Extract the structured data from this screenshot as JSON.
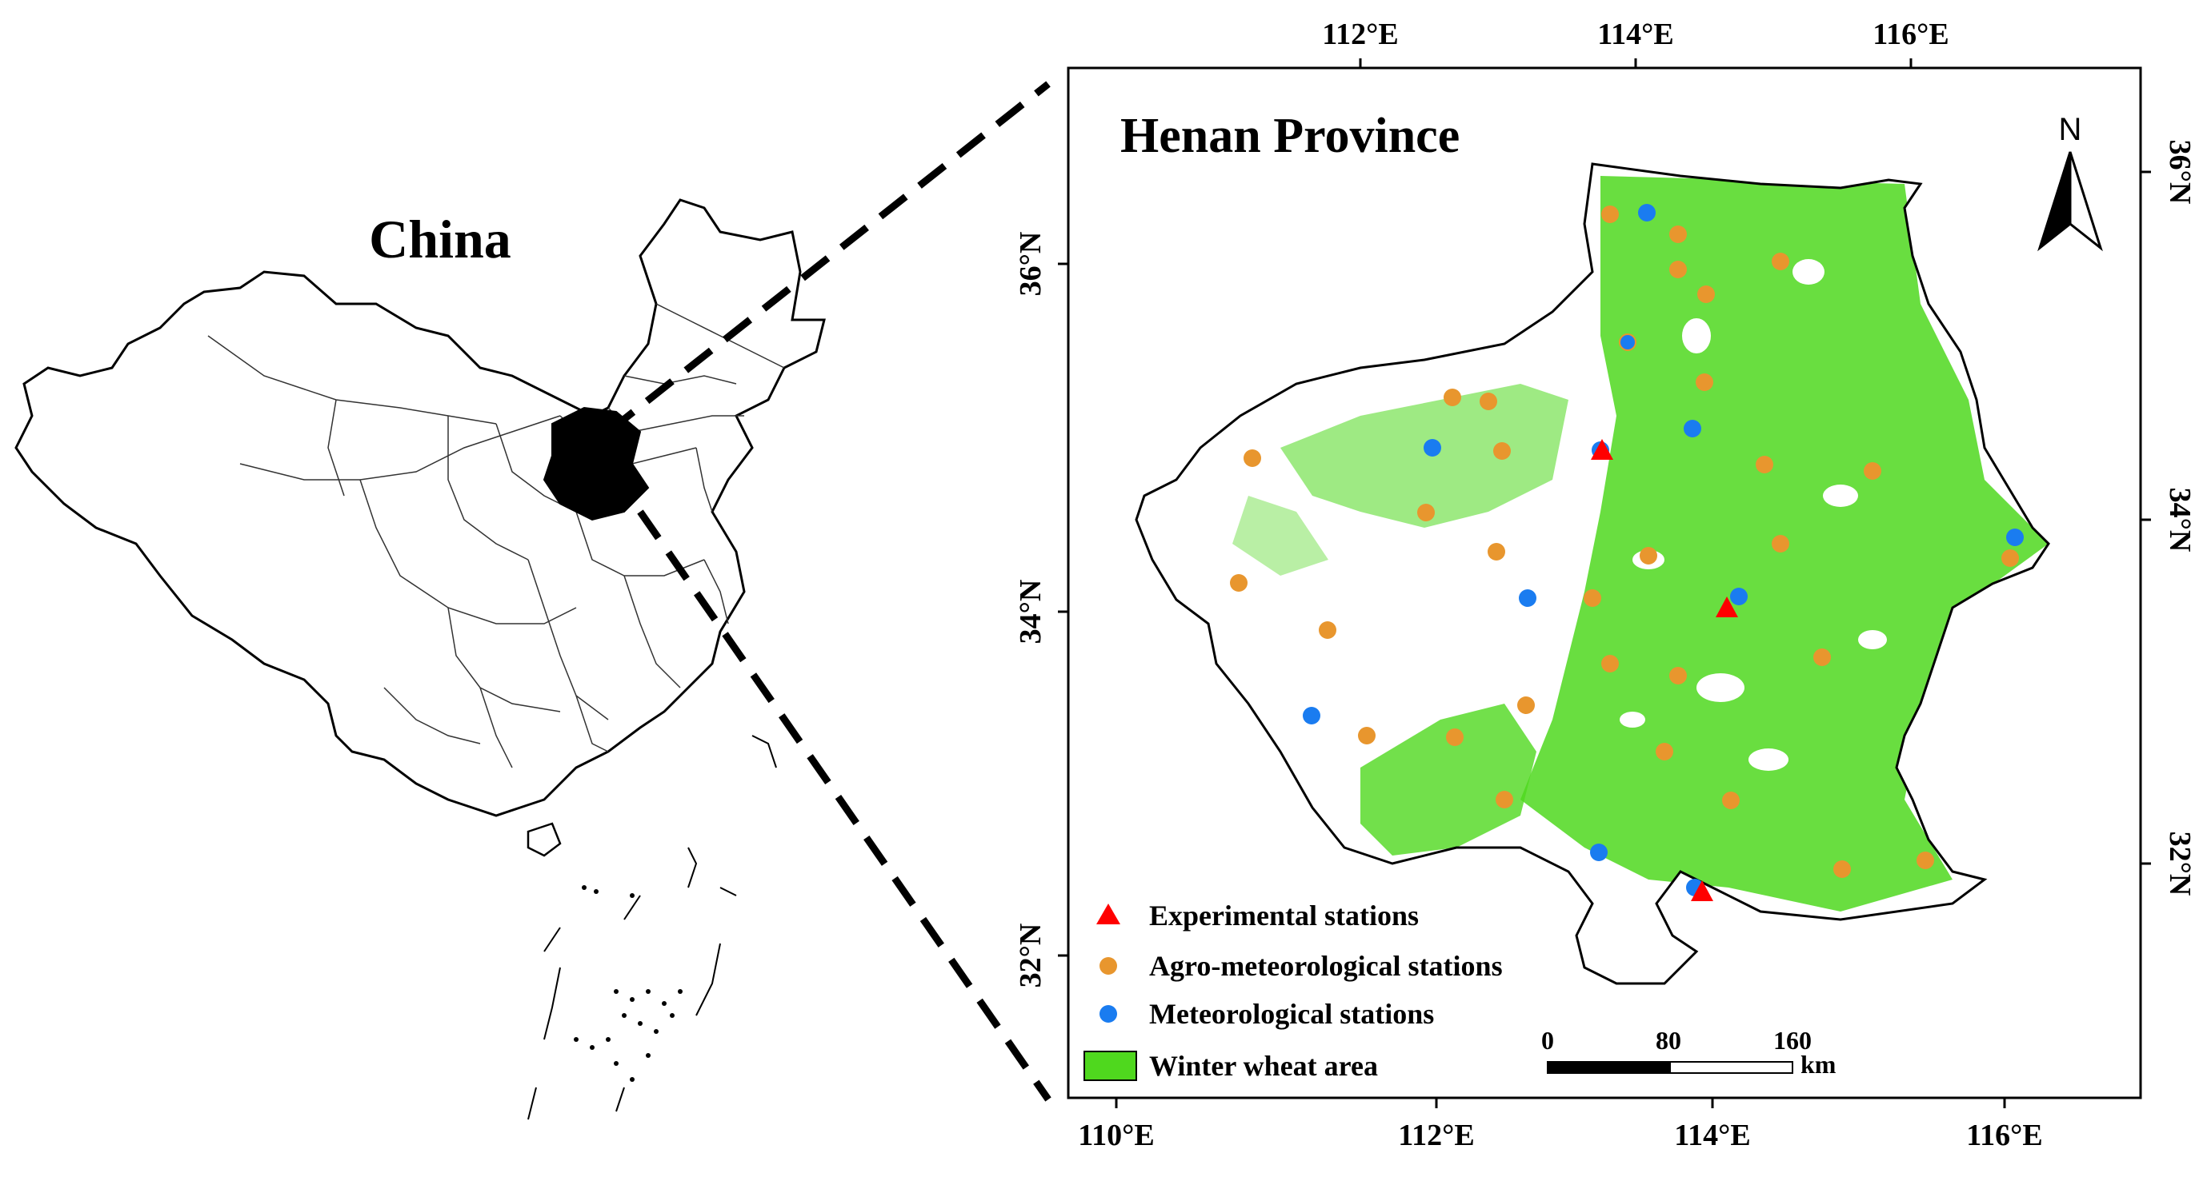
{
  "china_map": {
    "title": "China"
  },
  "henan_map": {
    "title": "Henan Province",
    "north_label": "N",
    "axis_top": [
      "112°E",
      "114°E",
      "116°E"
    ],
    "axis_bottom": [
      "110°E",
      "112°E",
      "114°E",
      "116°E"
    ],
    "axis_left": [
      "36°N",
      "34°N",
      "32°N"
    ],
    "axis_right": [
      "36°N",
      "34°N",
      "32°N"
    ],
    "scale_bar": {
      "ticks": [
        "0",
        "80",
        "160"
      ],
      "unit": "km"
    },
    "legend": [
      {
        "label": "Experimental stations",
        "symbol": "triangle",
        "color": "#ff0000"
      },
      {
        "label": "Agro-meteorological stations",
        "symbol": "circle",
        "color": "#e8962e"
      },
      {
        "label": "Meteorological stations",
        "symbol": "circle",
        "color": "#1a7cf0"
      },
      {
        "label": "Winter wheat area",
        "symbol": "rect",
        "color": "#4fd81e"
      }
    ]
  },
  "colors": {
    "wheat": "#4fd81e",
    "agro": "#e8962e",
    "met": "#1a7cf0",
    "exp": "#ff0000",
    "highlight_region": "#000000"
  }
}
